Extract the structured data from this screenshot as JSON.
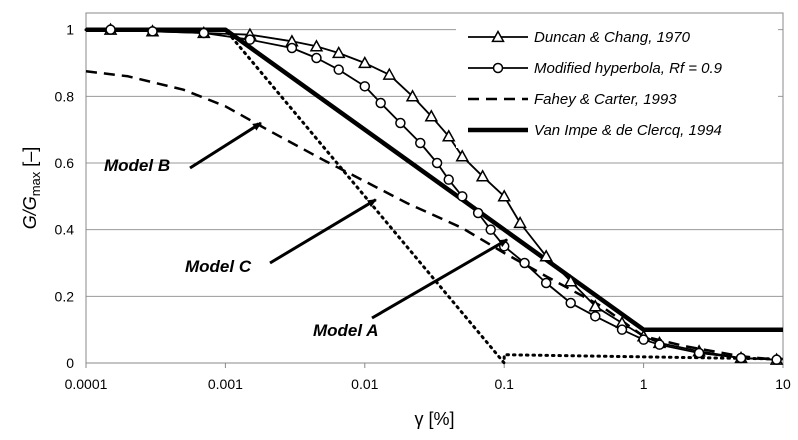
{
  "chart_data": {
    "type": "line",
    "xscale": "log",
    "xlim": [
      0.0001,
      10
    ],
    "ylim": [
      0,
      1.05
    ],
    "xticks": [
      "0.0001",
      "0.001",
      "0.01",
      "0.1",
      "1",
      "10"
    ],
    "yticks": [
      "0",
      "0.2",
      "0.4",
      "0.6",
      "0.8",
      "1"
    ],
    "xlabel": "γ [%]",
    "ylabel": {
      "prefix": "G/G",
      "sub": "max",
      "suffix": " [–]"
    },
    "grid": "horizontal",
    "legend_position": "top-right",
    "series": [
      {
        "name": "Duncan & Chang, 1970",
        "style": "solid-triangle-markers",
        "color": "#000000",
        "x": [
          0.00015,
          0.0003,
          0.0007,
          0.0015,
          0.003,
          0.0045,
          0.0065,
          0.01,
          0.015,
          0.022,
          0.03,
          0.04,
          0.05,
          0.07,
          0.1,
          0.13,
          0.2,
          0.3,
          0.45,
          0.7,
          1.0,
          1.3,
          2.5,
          5.0,
          9.0
        ],
        "y": [
          1.0,
          0.995,
          0.99,
          0.985,
          0.965,
          0.95,
          0.93,
          0.9,
          0.865,
          0.8,
          0.74,
          0.68,
          0.62,
          0.56,
          0.5,
          0.42,
          0.32,
          0.245,
          0.17,
          0.12,
          0.08,
          0.06,
          0.035,
          0.015,
          0.01
        ]
      },
      {
        "name": "Modified hyperbola, Rf = 0.9",
        "style": "solid-circle-markers",
        "color": "#000000",
        "x": [
          0.00015,
          0.0003,
          0.0007,
          0.0015,
          0.003,
          0.0045,
          0.0065,
          0.01,
          0.013,
          0.018,
          0.025,
          0.033,
          0.04,
          0.05,
          0.065,
          0.08,
          0.1,
          0.14,
          0.2,
          0.3,
          0.45,
          0.7,
          1.0,
          1.3,
          2.5,
          5.0,
          9.0
        ],
        "y": [
          1.0,
          0.995,
          0.99,
          0.97,
          0.945,
          0.915,
          0.88,
          0.83,
          0.78,
          0.72,
          0.66,
          0.6,
          0.55,
          0.5,
          0.45,
          0.4,
          0.35,
          0.3,
          0.24,
          0.18,
          0.14,
          0.1,
          0.07,
          0.055,
          0.03,
          0.015,
          0.01
        ]
      },
      {
        "name": "Fahey & Carter, 1993",
        "style": "dashed",
        "color": "#000000",
        "x": [
          0.0001,
          0.0002,
          0.0005,
          0.001,
          0.002,
          0.005,
          0.01,
          0.02,
          0.05,
          0.1,
          0.2,
          0.5,
          1.0,
          2.0,
          5.0,
          9.0
        ],
        "y": [
          0.875,
          0.86,
          0.82,
          0.77,
          0.7,
          0.61,
          0.545,
          0.48,
          0.405,
          0.33,
          0.26,
          0.17,
          0.08,
          0.05,
          0.02,
          0.01
        ]
      },
      {
        "name": "Van Impe & de Clercq, 1994",
        "style": "thick-solid",
        "color": "#000000",
        "x": [
          0.0001,
          0.001,
          1.0,
          10.0
        ],
        "y": [
          1.0,
          1.0,
          0.1,
          0.1
        ]
      },
      {
        "name": "",
        "style": "dotted",
        "color": "#000000",
        "x": [
          0.0001,
          0.001,
          0.01,
          0.1,
          0.1,
          10.0
        ],
        "y": [
          1.0,
          1.0,
          0.5,
          0.0,
          0.025,
          0.012
        ]
      }
    ],
    "annotations": [
      {
        "text": "Model B",
        "points_to": [
          0.0018,
          0.72
        ]
      },
      {
        "text": "Model C",
        "points_to": [
          0.012,
          0.49
        ]
      },
      {
        "text": "Model A",
        "points_to": [
          0.105,
          0.37
        ]
      }
    ]
  }
}
